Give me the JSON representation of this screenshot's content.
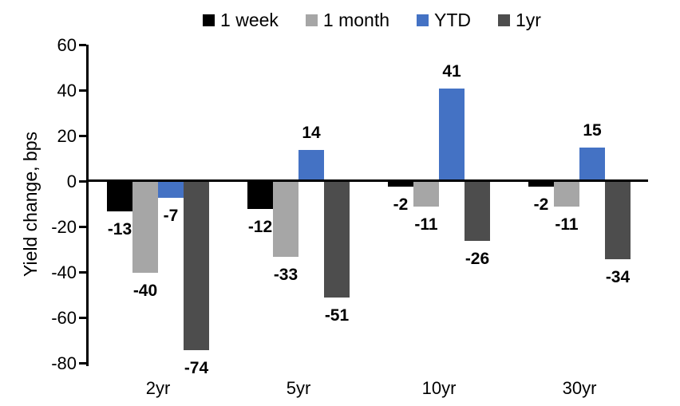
{
  "chart_data": {
    "type": "bar",
    "title": "",
    "ylabel": "Yield change, bps",
    "xlabel": "",
    "categories": [
      "2yr",
      "5yr",
      "10yr",
      "30yr"
    ],
    "series": [
      {
        "name": "1 week",
        "color": "#000000",
        "values": [
          -13,
          -12,
          -2,
          -2
        ]
      },
      {
        "name": "1 month",
        "color": "#A6A6A6",
        "values": [
          -40,
          -33,
          -11,
          -11
        ]
      },
      {
        "name": "YTD",
        "color": "#4472C4",
        "values": [
          -7,
          14,
          41,
          15
        ]
      },
      {
        "name": "1yr",
        "color": "#4D4D4D",
        "values": [
          -74,
          -51,
          -26,
          -34
        ]
      }
    ],
    "yticks": [
      60,
      40,
      20,
      0,
      -20,
      -40,
      -60,
      -80
    ],
    "ylim": [
      -80,
      60
    ],
    "ytick_step": 20,
    "data_labels": true,
    "legend_position": "top",
    "grid": false,
    "axis_color": "#000000",
    "text_color": "#000000",
    "background_color": "#FFFFFF"
  }
}
